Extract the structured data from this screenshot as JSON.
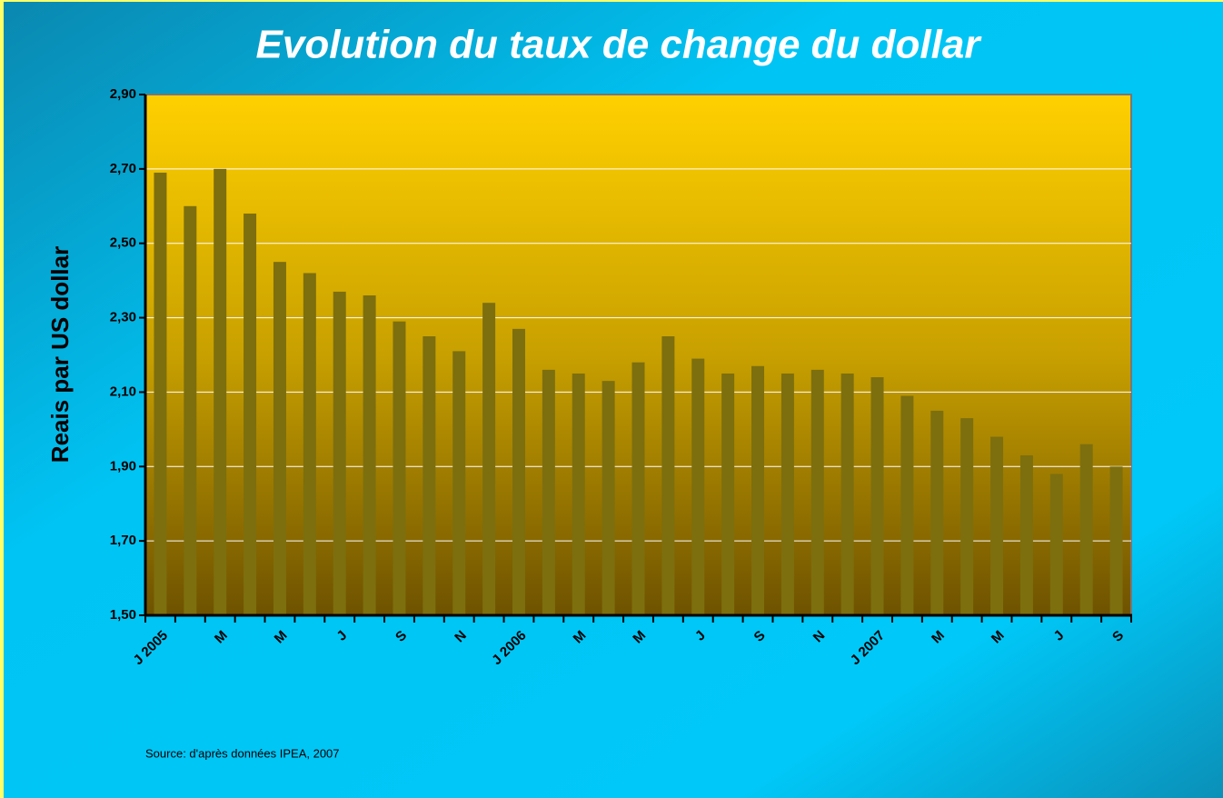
{
  "chart_data": {
    "type": "bar",
    "title": "Evolution du taux de change du dollar",
    "y_label": "Reais par US dollar",
    "source": "Source: d'après données IPEA, 2007",
    "categories": [
      "J 2005",
      null,
      "M",
      null,
      "M",
      null,
      "J",
      null,
      "S",
      null,
      "N",
      null,
      "J 2006",
      null,
      "M",
      null,
      "M",
      null,
      "J",
      null,
      "S",
      null,
      "N",
      null,
      "J 2007",
      null,
      "M",
      null,
      "M",
      null,
      "J",
      null,
      "S"
    ],
    "values": [
      2.69,
      2.6,
      2.7,
      2.58,
      2.45,
      2.42,
      2.37,
      2.36,
      2.29,
      2.25,
      2.21,
      2.34,
      2.27,
      2.16,
      2.15,
      2.13,
      2.18,
      2.25,
      2.19,
      2.15,
      2.17,
      2.15,
      2.16,
      2.15,
      2.14,
      2.09,
      2.05,
      2.03,
      1.98,
      1.93,
      1.88,
      1.96,
      1.9
    ],
    "color": "#7d6f0e",
    "ylim": [
      1.5,
      2.9
    ],
    "yticks": [
      {
        "value": 1.5,
        "label": "1,50"
      },
      {
        "value": 1.7,
        "label": "1,70"
      },
      {
        "value": 1.9,
        "label": "1,90"
      },
      {
        "value": 2.1,
        "label": "2,10"
      },
      {
        "value": 2.3,
        "label": "2,30"
      },
      {
        "value": 2.5,
        "label": "2,50"
      },
      {
        "value": 2.7,
        "label": "2,70"
      },
      {
        "value": 2.9,
        "label": "2,90"
      }
    ],
    "grid": true
  }
}
